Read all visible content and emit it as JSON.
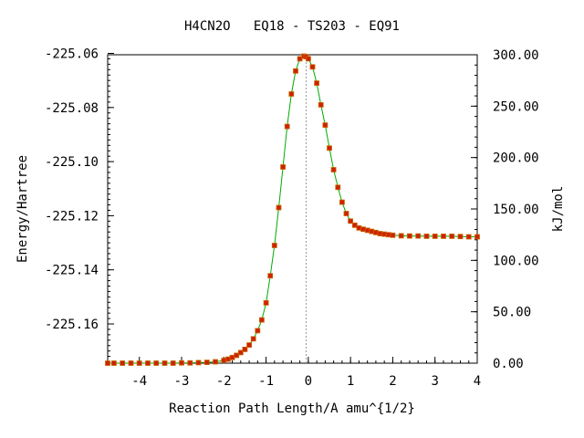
{
  "chart_data": {
    "type": "line",
    "title": "H4CN2O   EQ18 - TS203 - EQ91",
    "xlabel": "Reaction Path Length/A amu^{1/2}",
    "ylabel": "Energy/Hartree",
    "y2label": "kJ/mol",
    "xlim": [
      -4.75,
      4.0
    ],
    "ylim": [
      -225.1745,
      -225.0605
    ],
    "y2lim": [
      0.0,
      300.0
    ],
    "x_ticks": [
      -4,
      -3,
      -2,
      -1,
      0,
      1,
      2,
      3,
      4
    ],
    "x_tick_labels": [
      "-4",
      "-3",
      "-2",
      "-1",
      "0",
      "1",
      "2",
      "3",
      "4"
    ],
    "y_ticks": [
      -225.06,
      -225.08,
      -225.1,
      -225.12,
      -225.14,
      -225.16
    ],
    "y_tick_labels": [
      "-225.06",
      "-225.08",
      "-225.10",
      "-225.12",
      "-225.14",
      "-225.16"
    ],
    "y2_ticks": [
      0,
      50,
      100,
      150,
      200,
      250,
      300
    ],
    "y2_tick_labels": [
      "0.00",
      "50.00",
      "100.00",
      "150.00",
      "200.00",
      "250.00",
      "300.00"
    ],
    "ts_x": -0.05,
    "grid": false,
    "colors": {
      "line": "#00aa00",
      "marker": "#cc2200",
      "marker_edge": "#cc6600",
      "ts_line": "#999999"
    },
    "series": [
      {
        "x": [
          -4.75,
          -4.6,
          -4.4,
          -4.2,
          -4.0,
          -3.8,
          -3.6,
          -3.4,
          -3.2,
          -3.0,
          -2.8,
          -2.6,
          -2.4,
          -2.2,
          -2.0,
          -1.9,
          -1.8,
          -1.7,
          -1.6,
          -1.5,
          -1.4,
          -1.3,
          -1.2,
          -1.1,
          -1.0,
          -0.9,
          -0.8,
          -0.7,
          -0.6,
          -0.5,
          -0.4,
          -0.3,
          -0.2,
          -0.1,
          -0.05,
          0.0,
          0.1,
          0.2,
          0.3,
          0.4,
          0.5,
          0.6,
          0.7,
          0.8,
          0.9,
          1.0,
          1.1,
          1.2,
          1.3,
          1.4,
          1.5,
          1.6,
          1.7,
          1.8,
          1.9,
          2.0,
          2.2,
          2.4,
          2.6,
          2.8,
          3.0,
          3.2,
          3.4,
          3.6,
          3.8,
          4.0
        ],
        "y": [
          -225.1745,
          -225.1745,
          -225.1745,
          -225.1745,
          -225.1745,
          -225.1745,
          -225.1745,
          -225.1745,
          -225.1745,
          -225.1744,
          -225.1744,
          -225.1743,
          -225.1742,
          -225.174,
          -225.1735,
          -225.173,
          -225.1724,
          -225.1716,
          -225.1706,
          -225.1694,
          -225.1678,
          -225.1655,
          -225.1625,
          -225.1585,
          -225.1522,
          -225.1422,
          -225.131,
          -225.117,
          -225.102,
          -225.087,
          -225.075,
          -225.0665,
          -225.062,
          -225.061,
          -225.0612,
          -225.062,
          -225.065,
          -225.071,
          -225.079,
          -225.0865,
          -225.095,
          -225.103,
          -225.1095,
          -225.115,
          -225.1192,
          -225.122,
          -225.1235,
          -225.1245,
          -225.125,
          -225.1254,
          -225.1258,
          -225.1262,
          -225.1266,
          -225.1268,
          -225.127,
          -225.1272,
          -225.1274,
          -225.1275,
          -225.1275,
          -225.1276,
          -225.1276,
          -225.1276,
          -225.1276,
          -225.1277,
          -225.1278,
          -225.1278
        ]
      }
    ]
  }
}
